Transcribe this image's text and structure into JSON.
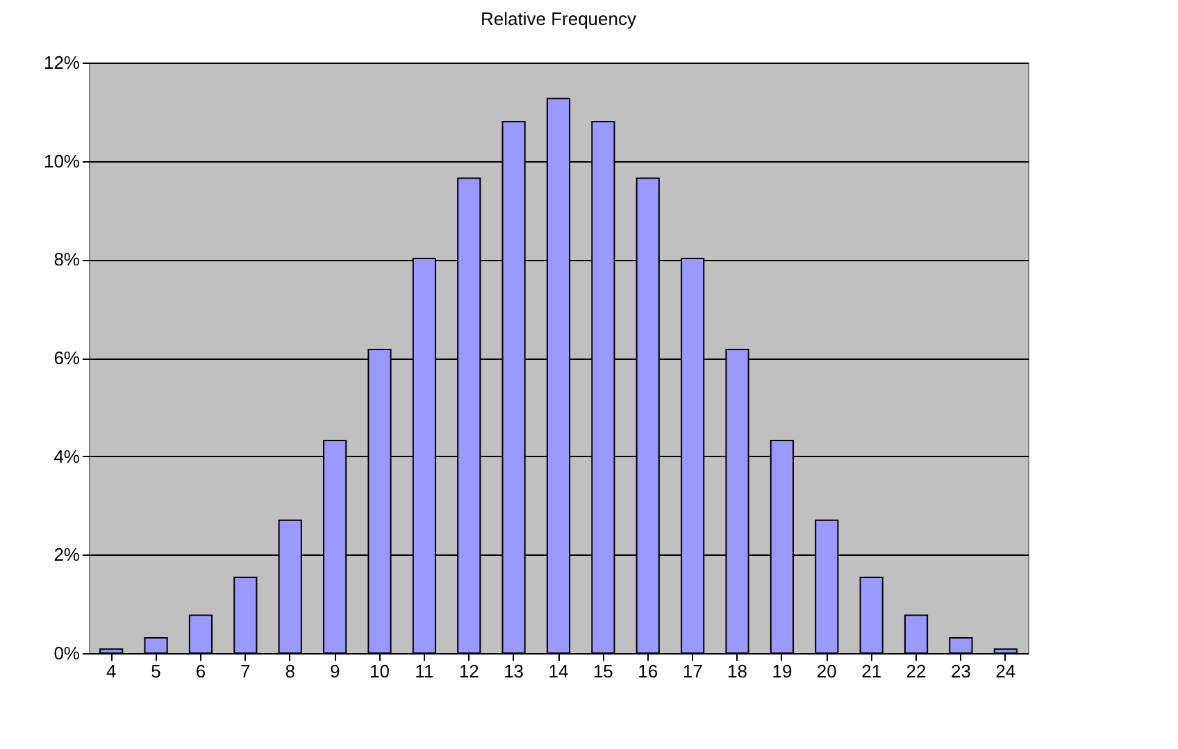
{
  "chart_data": {
    "type": "bar",
    "title": "Relative Frequency",
    "categories": [
      "4",
      "5",
      "6",
      "7",
      "8",
      "9",
      "10",
      "11",
      "12",
      "13",
      "14",
      "15",
      "16",
      "17",
      "18",
      "19",
      "20",
      "21",
      "22",
      "23",
      "24"
    ],
    "values": [
      0.08,
      0.31,
      0.77,
      1.54,
      2.7,
      4.32,
      6.17,
      8.02,
      9.65,
      10.8,
      11.27,
      10.8,
      9.65,
      8.02,
      6.17,
      4.32,
      2.7,
      1.54,
      0.77,
      0.31,
      0.08
    ],
    "color": "#9999ff",
    "ylim": [
      0,
      12
    ],
    "yticks": [
      {
        "value": 0,
        "label": "0%"
      },
      {
        "value": 2,
        "label": "2%"
      },
      {
        "value": 4,
        "label": "4%"
      },
      {
        "value": 6,
        "label": "6%"
      },
      {
        "value": 8,
        "label": "8%"
      },
      {
        "value": 10,
        "label": "10%"
      },
      {
        "value": 12,
        "label": "12%"
      }
    ],
    "grid": "y"
  }
}
